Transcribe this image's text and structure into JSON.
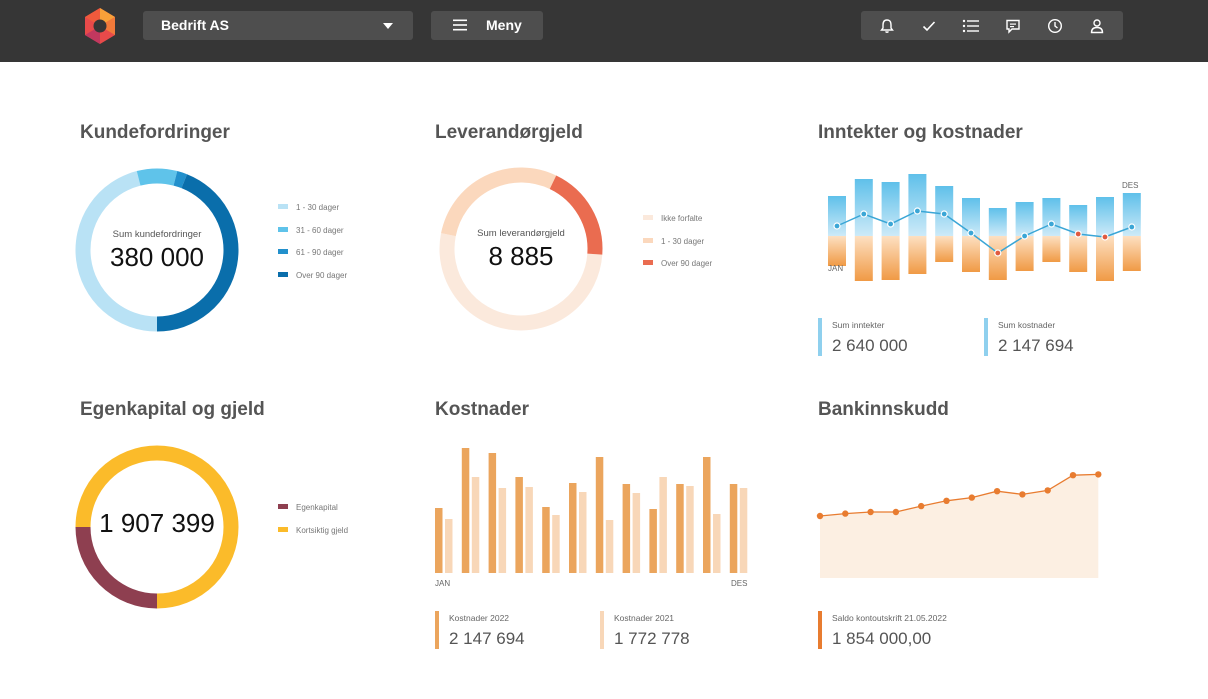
{
  "header": {
    "company": "Bedrift AS",
    "menu_label": "Meny",
    "icons": [
      "bell-icon",
      "check-icon",
      "list-icon",
      "chat-icon",
      "clock-icon",
      "user-icon"
    ]
  },
  "cards": {
    "kundefordringer": {
      "title": "Kundefordringer",
      "center_label": "Sum kundefordringer",
      "center_value": "380 000",
      "legend": [
        "1 - 30 dager",
        "31 - 60 dager",
        "61 - 90 dager",
        "Over 90 dager"
      ]
    },
    "leverandorgjeld": {
      "title": "Leverandørgjeld",
      "center_label": "Sum  leverandørgjeld",
      "center_value": "8 885",
      "legend": [
        "Ikke forfalte",
        "1 - 30 dager",
        "Over 90 dager"
      ]
    },
    "inntekter": {
      "title": "Inntekter og kostnader",
      "label_start": "JAN",
      "label_end": "DES",
      "stat1_label": "Sum inntekter",
      "stat1_value": "2 640 000",
      "stat2_label": "Sum kostnader",
      "stat2_value": "2 147 694"
    },
    "egenkapital": {
      "title": "Egenkapital og gjeld",
      "center_value": "1 907 399",
      "legend": [
        "Egenkapital",
        "Kortsiktig gjeld"
      ]
    },
    "kostnader": {
      "title": "Kostnader",
      "label_start": "JAN",
      "label_end": "DES",
      "stat1_label": "Kostnader 2022",
      "stat1_value": "2 147 694",
      "stat2_label": "Kostnader 2021",
      "stat2_value": "1 772 778"
    },
    "bank": {
      "title": "Bankinnskudd",
      "stat_label": "Saldo kontoutskrift 21.05.2022",
      "stat_value": "1 854 000,00"
    }
  },
  "chart_data": [
    {
      "type": "pie",
      "title": "Kundefordringer",
      "categories": [
        "1 - 30 dager",
        "31 - 60 dager",
        "61 - 90 dager",
        "Over 90 dager"
      ],
      "values": [
        46,
        8,
        2,
        44
      ],
      "colors": [
        "#b9e2f5",
        "#5fc3ea",
        "#2290cc",
        "#0a6eab"
      ]
    },
    {
      "type": "pie",
      "title": "Leverandørgjeld",
      "categories": [
        "Ikke forfalte",
        "1 - 30 dager",
        "Over 90 dager"
      ],
      "values": [
        52,
        29,
        19
      ],
      "colors": [
        "#fbe9dc",
        "#fbd8bd",
        "#ea6c50"
      ]
    },
    {
      "type": "bar",
      "title": "Inntekter og kostnader",
      "categories": [
        "JAN",
        "",
        "",
        "",
        "",
        "",
        "",
        "",
        "",
        "",
        "",
        "DES"
      ],
      "series": [
        {
          "name": "Sum inntekter",
          "values": [
            40,
            57,
            54,
            62,
            50,
            38,
            28,
            34,
            38,
            31,
            39,
            43
          ]
        },
        {
          "name": "Sum kostnader",
          "values": [
            -30,
            -45,
            -44,
            -38,
            -26,
            -36,
            -44,
            -35,
            -26,
            -36,
            -45,
            -35
          ]
        }
      ],
      "line": [
        10,
        22,
        12,
        25,
        22,
        3,
        -17,
        0,
        12,
        2,
        -1,
        9
      ],
      "colors": [
        "#5fc0ea",
        "#f0a050"
      ]
    },
    {
      "type": "pie",
      "title": "Egenkapital og gjeld",
      "categories": [
        "Egenkapital",
        "Kortsiktig gjeld"
      ],
      "values": [
        25,
        75
      ],
      "colors": [
        "#8e3f50",
        "#fbbb2a"
      ]
    },
    {
      "type": "bar",
      "title": "Kostnader",
      "categories": [
        "JAN",
        "",
        "",
        "",
        "",
        "",
        "",
        "",
        "",
        "",
        "",
        "DES"
      ],
      "series": [
        {
          "name": "Kostnader 2022",
          "values": [
            65,
            125,
            120,
            96,
            66,
            90,
            116,
            89,
            64,
            89,
            116,
            89
          ]
        },
        {
          "name": "Kostnader 2021",
          "values": [
            54,
            96,
            85,
            86,
            58,
            81,
            53,
            80,
            96,
            87,
            59,
            85
          ]
        }
      ],
      "colors": [
        "#eba55d",
        "#f8d7b8"
      ]
    },
    {
      "type": "area",
      "title": "Bankinnskudd",
      "values": [
        1.0,
        1.15,
        1.25,
        1.25,
        1.62,
        1.95,
        2.15,
        2.55,
        2.35,
        2.6,
        3.55,
        3.6
      ],
      "colors": [
        "#e87c30",
        "#fcefe2"
      ]
    }
  ]
}
